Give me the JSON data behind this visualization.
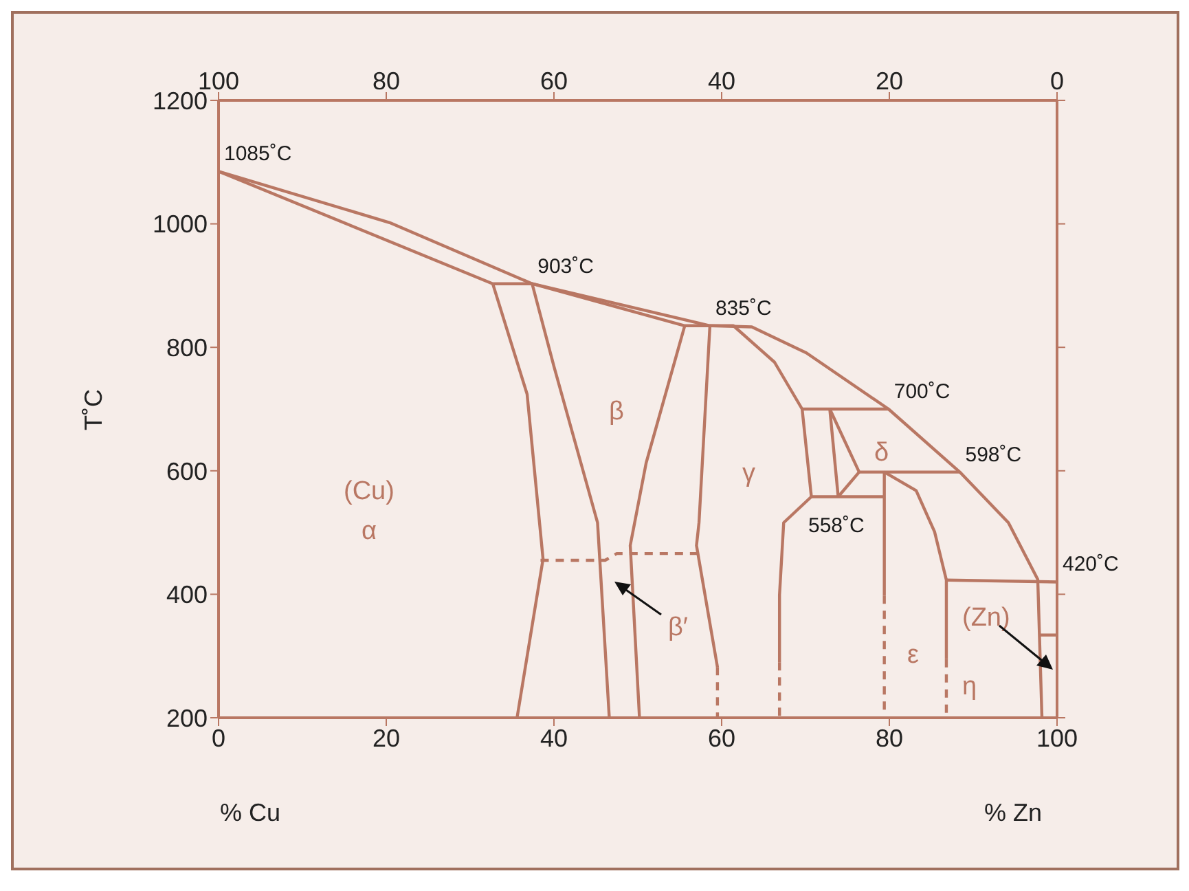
{
  "chart_data": {
    "type": "line",
    "xlabel": "% Zn",
    "x2label": "% Cu",
    "ylabel": "T˚C",
    "xlim": [
      0,
      100
    ],
    "xticks": [
      0,
      20,
      40,
      60,
      80,
      100
    ],
    "x2lim": [
      100,
      0
    ],
    "x2ticks": [
      100,
      80,
      60,
      40,
      20,
      0
    ],
    "ylim": [
      200,
      1200
    ],
    "yticks": [
      200,
      400,
      600,
      800,
      1000,
      1200
    ],
    "grid": false,
    "legend": false,
    "marker": "none",
    "line_style": "solid",
    "series": [
      {
        "color": "#b97763",
        "x": [
          0,
          20.4,
          37.4,
          58.6,
          63.6,
          70.1,
          79.9,
          88.4,
          94.2,
          97.7,
          98.2
        ],
        "values": [
          1085,
          1002,
          903,
          835,
          833,
          791,
          700,
          598,
          516,
          424,
          200
        ]
      },
      {
        "color": "#b97763",
        "x": [
          0,
          32.7,
          37.4,
          55.6,
          58.6,
          61.4,
          66.3,
          69.6,
          79.9
        ],
        "values": [
          1085,
          903,
          903,
          835,
          835,
          835,
          776,
          700,
          700
        ]
      },
      {
        "color": "#b97763",
        "x": [
          32.7,
          36.8,
          38.7,
          35.6
        ],
        "values": [
          903,
          724,
          457,
          200
        ]
      },
      {
        "color": "#b97763",
        "x": [
          37.4,
          40.0,
          45.2,
          46.6
        ],
        "values": [
          903,
          769,
          516,
          200
        ]
      },
      {
        "color": "#b97763",
        "x": [
          55.6,
          51.0,
          49.1,
          50.2
        ],
        "values": [
          835,
          613,
          479,
          200
        ]
      },
      {
        "color": "#b97763",
        "x": [
          58.6,
          57.3,
          57.0,
          59.5
        ],
        "values": [
          835,
          516,
          479,
          282
        ]
      },
      {
        "color": "#b97763",
        "line_style": "dashed",
        "x": [
          59.5,
          59.5
        ],
        "values": [
          282,
          200
        ]
      },
      {
        "color": "#b97763",
        "x": [
          69.6,
          70.7,
          79.4
        ],
        "values": [
          700,
          558,
          558
        ]
      },
      {
        "color": "#b97763",
        "x": [
          70.7,
          67.4,
          66.9,
          66.9
        ],
        "values": [
          558,
          516,
          399,
          290
        ]
      },
      {
        "color": "#b97763",
        "line_style": "dashed",
        "x": [
          66.9,
          66.9
        ],
        "values": [
          290,
          200
        ]
      },
      {
        "color": "#b97763",
        "x": [
          72.9,
          73.9
        ],
        "values": [
          700,
          558
        ]
      },
      {
        "color": "#b97763",
        "x": [
          72.9,
          76.4,
          88.4
        ],
        "values": [
          700,
          598,
          598
        ]
      },
      {
        "color": "#b97763",
        "x": [
          73.9,
          76.4
        ],
        "values": [
          558,
          598
        ]
      },
      {
        "color": "#b97763",
        "x": [
          79.4,
          79.4
        ],
        "values": [
          598,
          398
        ]
      },
      {
        "color": "#b97763",
        "line_style": "dashed",
        "x": [
          79.4,
          79.4
        ],
        "values": [
          398,
          200
        ]
      },
      {
        "color": "#b97763",
        "x": [
          79.4,
          83.2,
          85.4,
          86.8,
          86.8
        ],
        "values": [
          598,
          568,
          501,
          423,
          295
        ]
      },
      {
        "color": "#b97763",
        "line_style": "dashed",
        "x": [
          86.8,
          86.8
        ],
        "values": [
          295,
          200
        ]
      },
      {
        "color": "#b97763",
        "x": [
          86.8,
          100
        ],
        "values": [
          423,
          420
        ]
      },
      {
        "color": "#b97763",
        "x": [
          98.0,
          100
        ],
        "values": [
          334,
          334
        ]
      },
      {
        "color": "#b97763",
        "line_style": "dashed",
        "x": [
          38.4,
          46.1,
          47.5,
          57.3
        ],
        "values": [
          455,
          455,
          466,
          466
        ]
      }
    ],
    "annotations": [
      {
        "text": "1085˚C",
        "x": 0,
        "y": 1085
      },
      {
        "text": "903˚C",
        "x": 37.4,
        "y": 903
      },
      {
        "text": "835˚C",
        "x": 58.6,
        "y": 835
      },
      {
        "text": "700˚C",
        "x": 79.9,
        "y": 700
      },
      {
        "text": "598˚C",
        "x": 88.4,
        "y": 598
      },
      {
        "text": "420˚C",
        "x": 100,
        "y": 420
      },
      "558˚C",
      "(Cu)",
      "α",
      "β",
      "γ",
      "δ",
      "β′",
      "ε",
      "(Zn)",
      "η"
    ]
  }
}
